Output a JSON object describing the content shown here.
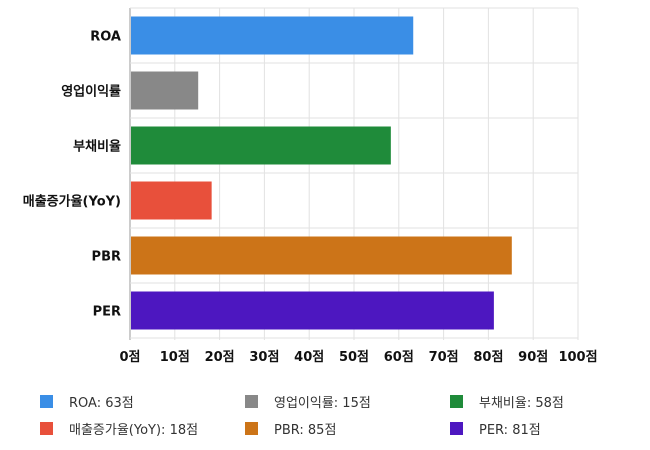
{
  "chart_data": {
    "type": "bar",
    "orientation": "horizontal",
    "categories": [
      "ROA",
      "영업이익률",
      "부채비율",
      "매출증가율(YoY)",
      "PBR",
      "PER"
    ],
    "values": [
      63,
      15,
      58,
      18,
      85,
      81
    ],
    "colors": [
      "#3a8ee6",
      "#888888",
      "#1f8b3a",
      "#e8503b",
      "#cc7418",
      "#4d17c0"
    ],
    "xlim": [
      0,
      100
    ],
    "xticks": [
      0,
      10,
      20,
      30,
      40,
      50,
      60,
      70,
      80,
      90,
      100
    ],
    "tick_suffix": "점",
    "grid": true,
    "legend_position": "bottom",
    "legend": [
      {
        "label": "ROA: 63점",
        "color": "#3a8ee6"
      },
      {
        "label": "영업이익률: 15점",
        "color": "#888888"
      },
      {
        "label": "부채비율: 58점",
        "color": "#1f8b3a"
      },
      {
        "label": "매출증가율(YoY): 18점",
        "color": "#e8503b"
      },
      {
        "label": "PBR: 85점",
        "color": "#cc7418"
      },
      {
        "label": "PER: 81점",
        "color": "#4d17c0"
      }
    ]
  }
}
